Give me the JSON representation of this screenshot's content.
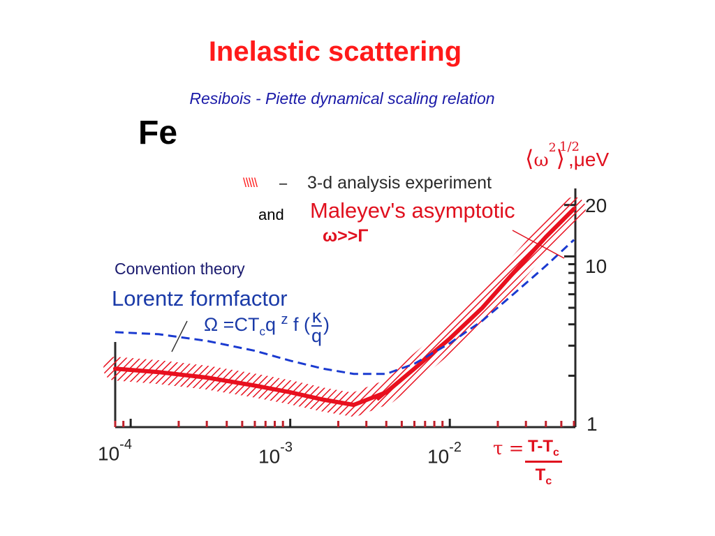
{
  "title": "Inelastic scattering",
  "subtitle": "Resibois - Piette dynamical scaling relation",
  "element": "Fe",
  "y_unit": {
    "open": "⟨",
    "omega": "ω",
    "sup2": "2",
    "close": "⟩",
    "sup_half": "1/2",
    "unit": ",μeV"
  },
  "legend": {
    "hatch_symbol": "\\\\\\\\\\",
    "dash": "–",
    "experiment": "3-d analysis experiment",
    "and": "and",
    "asymptotic": "Maleyev's asymptotic",
    "condition": "ω>>Γ",
    "convention": "Convention theory",
    "lorentz": "Lorentz formfactor",
    "formula": {
      "lhs": "Ω =CT",
      "sub_c": "c",
      "q": "q",
      "z": "z",
      "f": " f (",
      "num": "κ",
      "den": "q",
      "close": ")"
    }
  },
  "x_ticks": [
    {
      "base": "10",
      "exp": "-4"
    },
    {
      "base": "10",
      "exp": "-3"
    },
    {
      "base": "10",
      "exp": "-2"
    }
  ],
  "y_ticks": [
    "20",
    "10",
    "1"
  ],
  "tau": {
    "lhs": "τ =",
    "num": "T-T",
    "num_sub": "c",
    "den": "T",
    "den_sub": "c"
  },
  "colors": {
    "title": "#ff1a1a",
    "subtitle": "#1a1aa8",
    "experiment": "#e8101e",
    "theory": "#1a3ad0",
    "axis": "#2a2a2a"
  },
  "chart_data": {
    "type": "line",
    "xscale": "log",
    "yscale": "log",
    "xlim": [
      8e-05,
      0.06
    ],
    "ylim": [
      1,
      25
    ],
    "series": [
      {
        "name": "3-d analysis experiment",
        "style": "hatched",
        "x": [
          8e-05,
          0.00015,
          0.0003,
          0.0006,
          0.001,
          0.0016,
          0.0025,
          0.004,
          0.006,
          0.01,
          0.016,
          0.025,
          0.04,
          0.06
        ],
        "y": [
          2.2,
          2.1,
          1.95,
          1.75,
          1.6,
          1.45,
          1.35,
          1.6,
          2.2,
          3.3,
          5.0,
          8.0,
          13.0,
          19.0
        ]
      },
      {
        "name": "Maleyev's asymptotic",
        "style": "solid",
        "x": [
          0.0035,
          0.006,
          0.01,
          0.016,
          0.025,
          0.04,
          0.06
        ],
        "y": [
          1.45,
          2.2,
          3.3,
          5.0,
          8.0,
          13.0,
          19.0
        ]
      },
      {
        "name": "Lorentz formfactor",
        "style": "dashed",
        "x": [
          8e-05,
          0.00015,
          0.0003,
          0.0006,
          0.001,
          0.0016,
          0.0025,
          0.004,
          0.006,
          0.01,
          0.016,
          0.025,
          0.04,
          0.06
        ],
        "y": [
          3.6,
          3.5,
          3.2,
          2.8,
          2.45,
          2.2,
          2.05,
          2.05,
          2.35,
          3.1,
          4.2,
          6.0,
          8.8,
          12.5
        ]
      }
    ]
  }
}
